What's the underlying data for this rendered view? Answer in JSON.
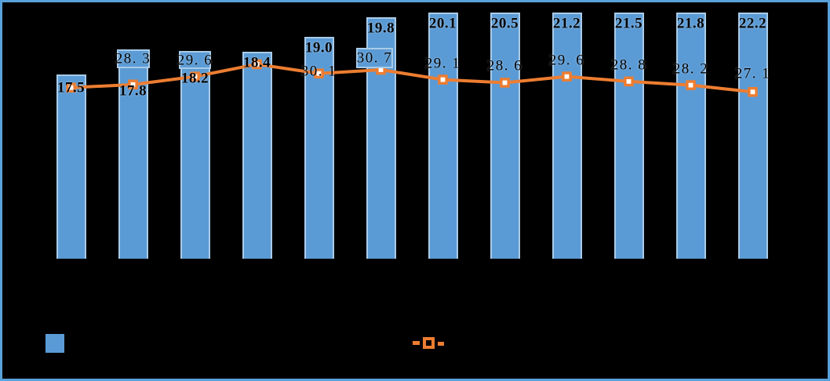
{
  "chart": {
    "background": "#000000",
    "frame_border_color": "#58a1da",
    "text_color": "#000000"
  },
  "chart_data": {
    "type": "combo",
    "categories_visible": false,
    "series": [
      {
        "name": "bars",
        "type": "bar",
        "color": "#5b9bd5",
        "border_color": "#a9cbe8",
        "y_axis": {
          "min": 10,
          "max": 20
        },
        "values": [
          17.5,
          17.8,
          18.2,
          18.4,
          19.0,
          19.8,
          20.1,
          20.5,
          21.2,
          21.5,
          21.8,
          22.2
        ],
        "labels": [
          "17.5",
          "17.8",
          "18.2",
          "18.4",
          "19.0",
          "19.8",
          "20.1",
          "20.5",
          "21.2",
          "21.5",
          "21.8",
          "22.2"
        ]
      },
      {
        "name": "line",
        "type": "line",
        "color": "#ed7d31",
        "marker": "square",
        "marker_fill": "#ffffff",
        "y_axis": {
          "min": 0,
          "max": 40
        },
        "values": [
          27.8,
          28.3,
          29.6,
          31.6,
          30.1,
          30.7,
          29.1,
          28.6,
          29.6,
          28.8,
          28.2,
          27.1
        ],
        "labels": [
          null,
          "28. 3",
          "29. 6",
          null,
          "30. 1",
          "30. 7",
          "29. 1",
          "28. 6",
          "29. 6",
          "28. 8",
          "28. 2",
          "27. 1"
        ]
      }
    ],
    "legend": {
      "position": "bottom-left",
      "items": [
        {
          "name": "bars",
          "swatch": "blue-square",
          "color": "#5b9bd5",
          "label": ""
        },
        {
          "name": "line",
          "swatch": "orange-dash-square-dash",
          "color": "#ed7d31",
          "label": ""
        }
      ]
    }
  }
}
